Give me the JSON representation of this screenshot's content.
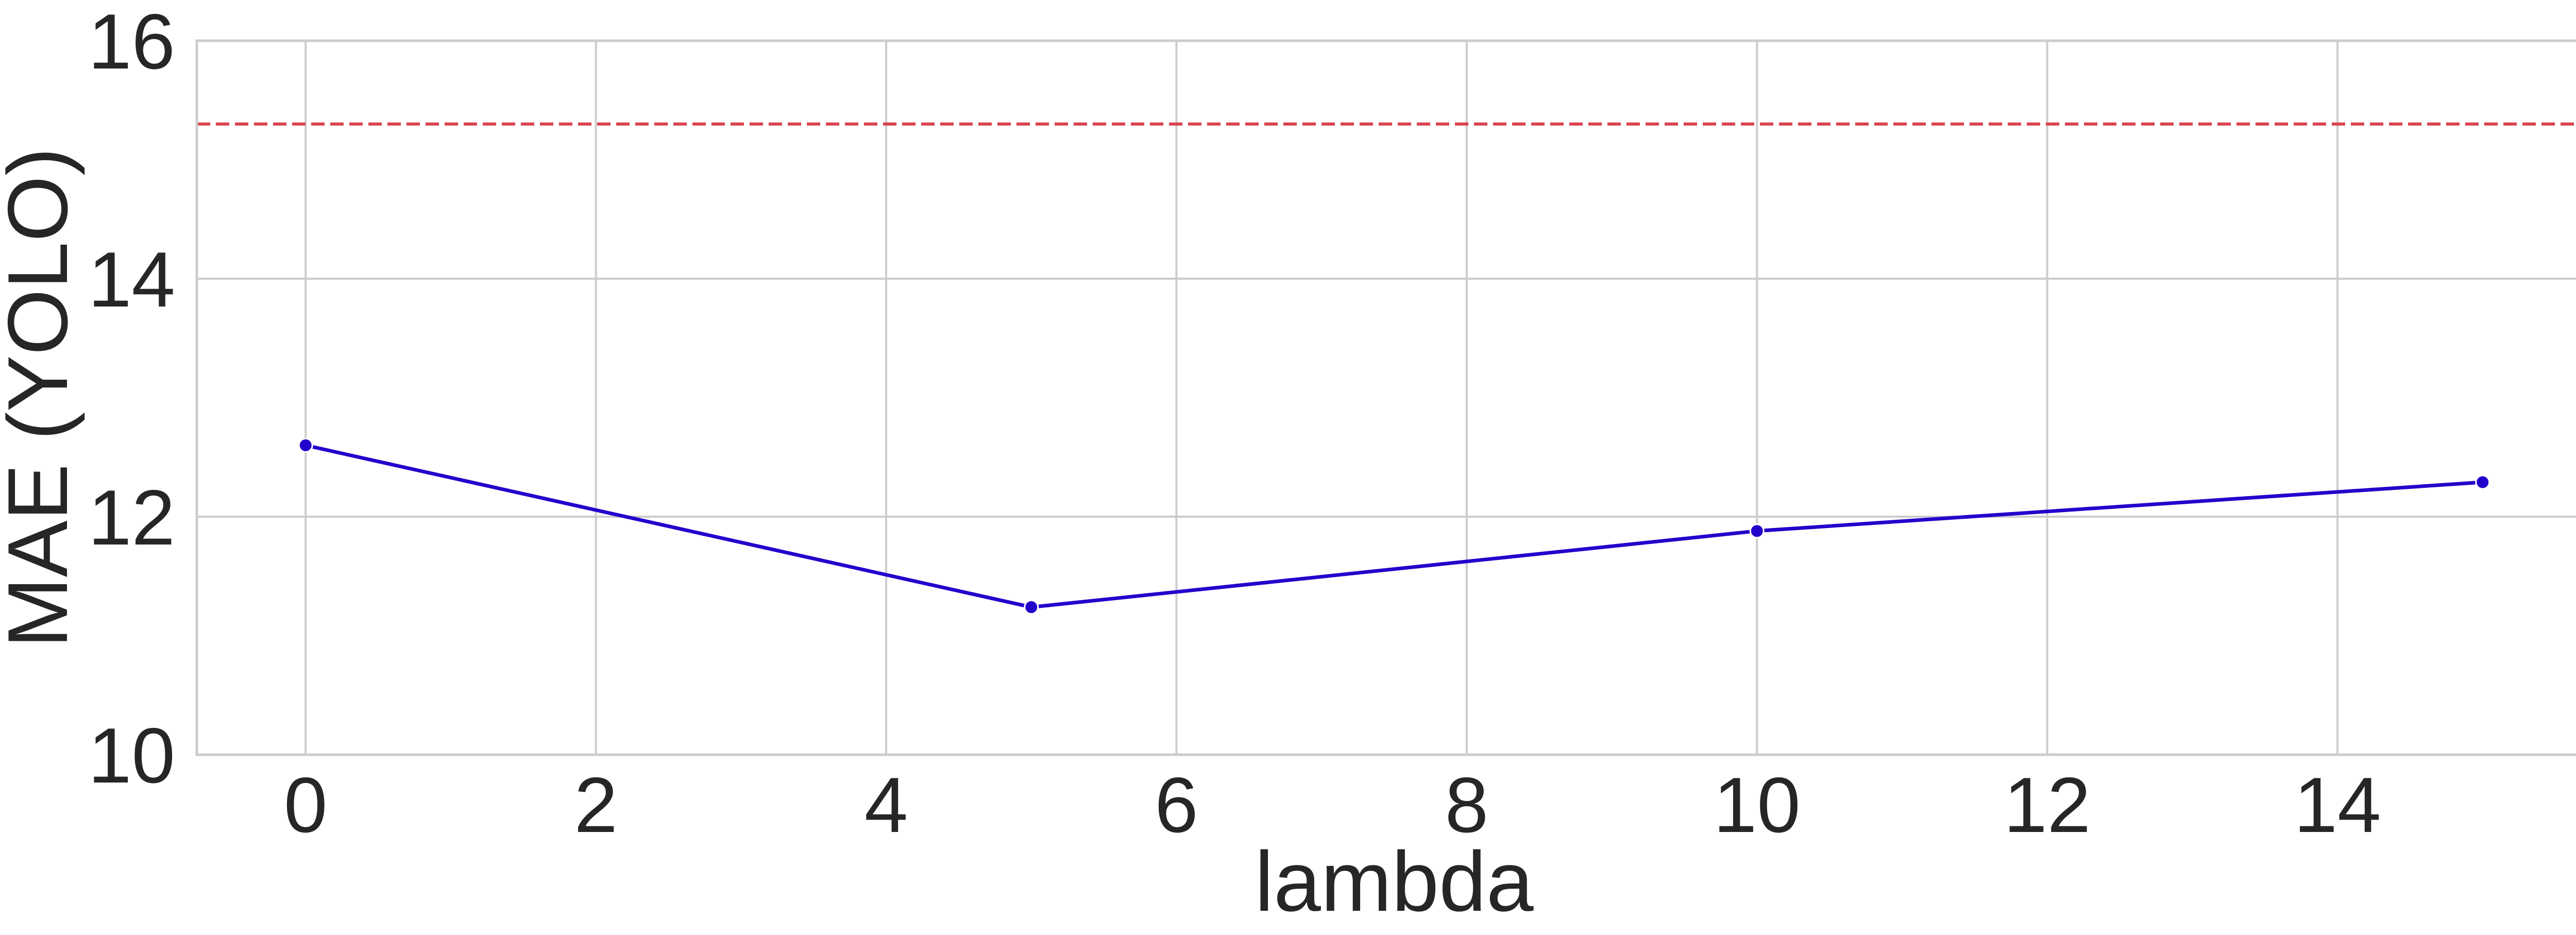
{
  "chart_data": {
    "type": "line",
    "title": "",
    "xlabel": "lambda",
    "ylabel": "MAE (YOLO)",
    "xlim": [
      -0.75,
      15.75
    ],
    "ylim": [
      10,
      16
    ],
    "x_ticks": [
      0,
      2,
      4,
      6,
      8,
      10,
      12,
      14
    ],
    "y_ticks": [
      10,
      12,
      14,
      16
    ],
    "grid": true,
    "series": [
      {
        "x": [
          0,
          5,
          10,
          15
        ],
        "values": [
          12.6,
          11.24,
          11.88,
          12.29
        ],
        "color": "#2200cc",
        "marker": "circle"
      }
    ],
    "reference_lines": [
      {
        "orientation": "horizontal",
        "value": 15.3,
        "color": "#d9444f",
        "style": "dashed"
      }
    ]
  }
}
